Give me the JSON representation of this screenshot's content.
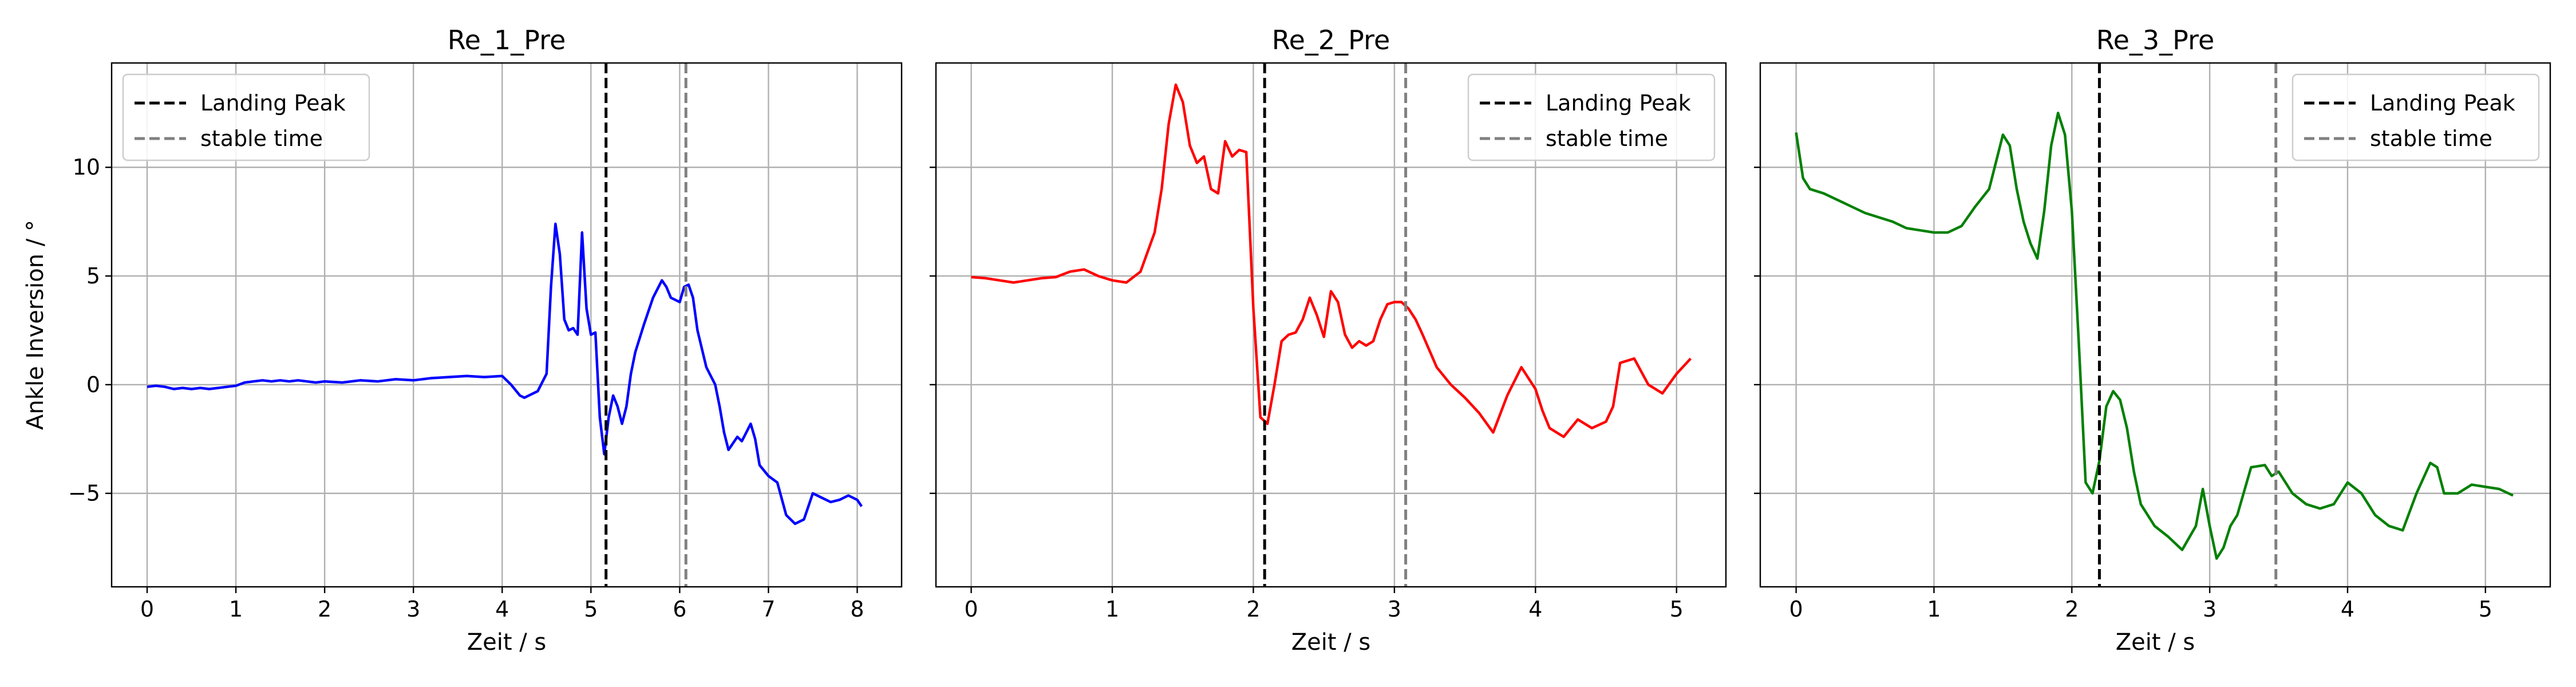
{
  "chart_data": [
    {
      "type": "line",
      "title": "Re_1_Pre",
      "xlabel": "Zeit / s",
      "ylabel": "Ankle Inversion / °",
      "xlim": [
        -0.4,
        8.5
      ],
      "ylim": [
        -9.3,
        14.8
      ],
      "xticks": [
        0,
        1,
        2,
        3,
        4,
        5,
        6,
        7,
        8
      ],
      "yticks": [
        -5,
        0,
        5,
        10
      ],
      "grid": true,
      "legend": "top-left",
      "series": [
        {
          "name": "",
          "color": "#0000ff",
          "x": [
            0,
            0.1,
            0.2,
            0.3,
            0.4,
            0.5,
            0.6,
            0.7,
            0.8,
            0.9,
            1.0,
            1.1,
            1.2,
            1.3,
            1.4,
            1.5,
            1.6,
            1.7,
            1.8,
            1.9,
            2.0,
            2.2,
            2.4,
            2.6,
            2.8,
            3.0,
            3.2,
            3.4,
            3.6,
            3.8,
            4.0,
            4.1,
            4.2,
            4.25,
            4.3,
            4.4,
            4.5,
            4.55,
            4.6,
            4.65,
            4.7,
            4.75,
            4.8,
            4.85,
            4.9,
            4.95,
            5.0,
            5.05,
            5.1,
            5.15,
            5.2,
            5.25,
            5.3,
            5.35,
            5.4,
            5.45,
            5.5,
            5.6,
            5.7,
            5.8,
            5.85,
            5.9,
            6.0,
            6.05,
            6.1,
            6.15,
            6.2,
            6.3,
            6.4,
            6.45,
            6.5,
            6.55,
            6.6,
            6.65,
            6.7,
            6.75,
            6.8,
            6.85,
            6.9,
            7.0,
            7.1,
            7.2,
            7.3,
            7.4,
            7.5,
            7.6,
            7.7,
            7.8,
            7.9,
            8.0,
            8.05
          ],
          "y": [
            -0.1,
            -0.05,
            -0.1,
            -0.2,
            -0.15,
            -0.2,
            -0.15,
            -0.2,
            -0.15,
            -0.1,
            -0.05,
            0.1,
            0.15,
            0.2,
            0.15,
            0.2,
            0.15,
            0.2,
            0.15,
            0.1,
            0.15,
            0.1,
            0.2,
            0.15,
            0.25,
            0.2,
            0.3,
            0.35,
            0.4,
            0.35,
            0.4,
            0.0,
            -0.5,
            -0.6,
            -0.5,
            -0.3,
            0.5,
            4.5,
            7.4,
            6.0,
            3.0,
            2.5,
            2.6,
            2.3,
            7.0,
            3.5,
            2.3,
            2.4,
            -1.5,
            -3.2,
            -1.5,
            -0.5,
            -1.0,
            -1.8,
            -1.0,
            0.5,
            1.5,
            2.8,
            4.0,
            4.8,
            4.5,
            4.0,
            3.8,
            4.5,
            4.6,
            4.0,
            2.5,
            0.8,
            0.0,
            -1.0,
            -2.2,
            -3.0,
            -2.7,
            -2.4,
            -2.6,
            -2.2,
            -1.8,
            -2.5,
            -3.7,
            -4.2,
            -4.5,
            -6.0,
            -6.4,
            -6.2,
            -5.0,
            -5.2,
            -5.4,
            -5.3,
            -5.1,
            -5.3,
            -5.6
          ]
        }
      ],
      "vlines": [
        {
          "label": "Landing Peak",
          "x": 5.17,
          "color": "#000000"
        },
        {
          "label": "stable time",
          "x": 6.07,
          "color": "#808080"
        }
      ]
    },
    {
      "type": "line",
      "title": "Re_2_Pre",
      "xlabel": "Zeit / s",
      "ylabel": "",
      "xlim": [
        -0.25,
        5.35
      ],
      "ylim": [
        -9.3,
        14.8
      ],
      "xticks": [
        0,
        1,
        2,
        3,
        4,
        5
      ],
      "yticks": [
        -5,
        0,
        5,
        10
      ],
      "grid": true,
      "legend": "top-right",
      "series": [
        {
          "name": "",
          "color": "#ff0000",
          "x": [
            0,
            0.1,
            0.2,
            0.3,
            0.4,
            0.5,
            0.6,
            0.7,
            0.8,
            0.9,
            1.0,
            1.1,
            1.2,
            1.3,
            1.35,
            1.4,
            1.45,
            1.5,
            1.55,
            1.6,
            1.65,
            1.7,
            1.75,
            1.8,
            1.85,
            1.9,
            1.95,
            2.0,
            2.05,
            2.1,
            2.15,
            2.2,
            2.25,
            2.3,
            2.35,
            2.4,
            2.45,
            2.5,
            2.55,
            2.6,
            2.65,
            2.7,
            2.75,
            2.8,
            2.85,
            2.9,
            2.95,
            3.0,
            3.05,
            3.1,
            3.15,
            3.2,
            3.3,
            3.4,
            3.5,
            3.6,
            3.7,
            3.8,
            3.9,
            4.0,
            4.05,
            4.1,
            4.2,
            4.3,
            4.4,
            4.5,
            4.55,
            4.6,
            4.7,
            4.8,
            4.9,
            5.0,
            5.1
          ],
          "y": [
            4.95,
            4.9,
            4.8,
            4.7,
            4.8,
            4.9,
            4.95,
            5.2,
            5.3,
            5.0,
            4.8,
            4.7,
            5.2,
            7.0,
            9.0,
            12.0,
            13.8,
            13.0,
            11.0,
            10.2,
            10.5,
            9.0,
            8.8,
            11.2,
            10.5,
            10.8,
            10.7,
            3.5,
            -1.5,
            -1.8,
            0.0,
            2.0,
            2.3,
            2.4,
            3.0,
            4.0,
            3.2,
            2.2,
            4.3,
            3.8,
            2.3,
            1.7,
            2.0,
            1.8,
            2.0,
            3.0,
            3.7,
            3.8,
            3.8,
            3.5,
            3.0,
            2.3,
            0.8,
            0.0,
            -0.6,
            -1.3,
            -2.2,
            -0.5,
            0.8,
            -0.2,
            -1.2,
            -2.0,
            -2.4,
            -1.6,
            -2.0,
            -1.7,
            -1.0,
            1.0,
            1.2,
            0.0,
            -0.4,
            0.5,
            1.2
          ]
        }
      ],
      "vlines": [
        {
          "label": "Landing Peak",
          "x": 2.08,
          "color": "#000000"
        },
        {
          "label": "stable time",
          "x": 3.08,
          "color": "#808080"
        }
      ]
    },
    {
      "type": "line",
      "title": "Re_3_Pre",
      "xlabel": "Zeit / s",
      "ylabel": "",
      "xlim": [
        -0.26,
        5.47
      ],
      "ylim": [
        -9.3,
        14.8
      ],
      "xticks": [
        0,
        1,
        2,
        3,
        4,
        5
      ],
      "yticks": [
        -5,
        0,
        5,
        10
      ],
      "grid": true,
      "legend": "top-right",
      "series": [
        {
          "name": "",
          "color": "#008000",
          "x": [
            0,
            0.05,
            0.1,
            0.2,
            0.3,
            0.4,
            0.5,
            0.6,
            0.7,
            0.8,
            0.9,
            1.0,
            1.1,
            1.2,
            1.3,
            1.4,
            1.5,
            1.55,
            1.6,
            1.65,
            1.7,
            1.75,
            1.8,
            1.85,
            1.9,
            1.95,
            2.0,
            2.05,
            2.1,
            2.15,
            2.2,
            2.25,
            2.3,
            2.35,
            2.4,
            2.45,
            2.5,
            2.55,
            2.6,
            2.7,
            2.8,
            2.9,
            2.95,
            3.0,
            3.05,
            3.1,
            3.15,
            3.2,
            3.3,
            3.4,
            3.45,
            3.5,
            3.6,
            3.7,
            3.8,
            3.9,
            4.0,
            4.1,
            4.2,
            4.3,
            4.4,
            4.5,
            4.6,
            4.65,
            4.7,
            4.8,
            4.9,
            5.0,
            5.1,
            5.2
          ],
          "y": [
            11.6,
            9.5,
            9.0,
            8.8,
            8.5,
            8.2,
            7.9,
            7.7,
            7.5,
            7.2,
            7.1,
            7.0,
            7.0,
            7.3,
            8.2,
            9.0,
            11.5,
            11.0,
            9.0,
            7.5,
            6.5,
            5.8,
            8.0,
            11.0,
            12.5,
            11.5,
            8.0,
            2.0,
            -4.5,
            -5.0,
            -3.5,
            -1.0,
            -0.3,
            -0.7,
            -2.0,
            -4.0,
            -5.5,
            -6.0,
            -6.5,
            -7.0,
            -7.6,
            -6.5,
            -4.8,
            -6.5,
            -8.0,
            -7.5,
            -6.5,
            -6.0,
            -3.8,
            -3.7,
            -4.2,
            -4.0,
            -5.0,
            -5.5,
            -5.7,
            -5.5,
            -4.5,
            -5.0,
            -6.0,
            -6.5,
            -6.7,
            -5.0,
            -3.6,
            -3.8,
            -5.0,
            -5.0,
            -4.6,
            -4.7,
            -4.8,
            -5.1
          ]
        }
      ],
      "vlines": [
        {
          "label": "Landing Peak",
          "x": 2.2,
          "color": "#000000"
        },
        {
          "label": "stable time",
          "x": 3.48,
          "color": "#808080"
        }
      ]
    }
  ]
}
